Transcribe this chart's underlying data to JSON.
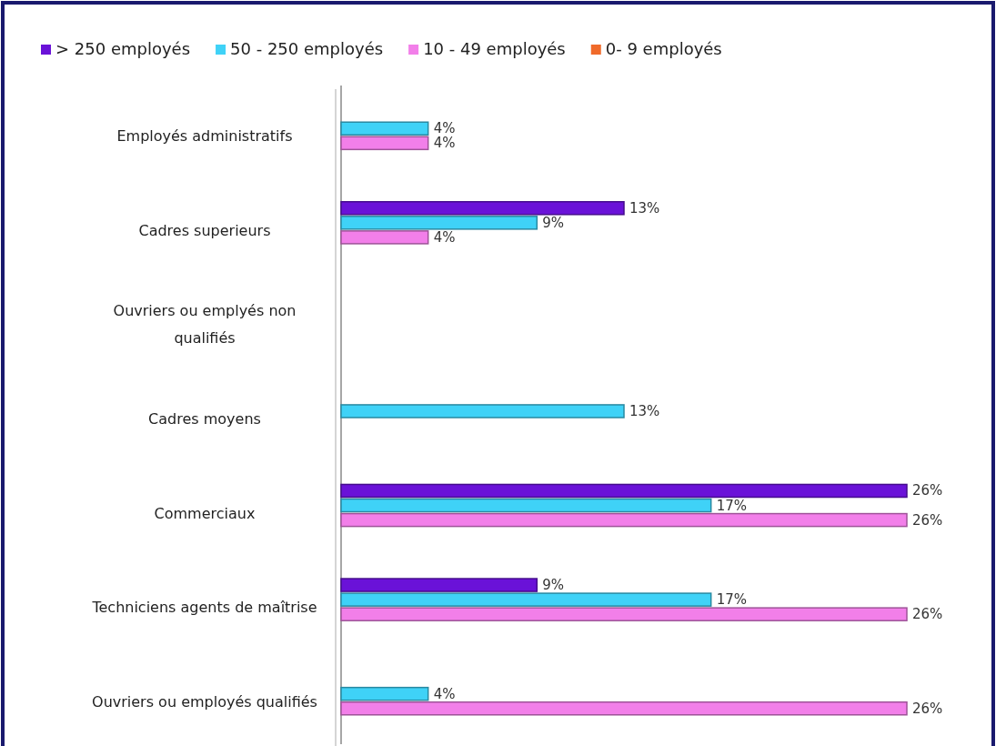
{
  "chart_data": {
    "type": "bar",
    "orientation": "horizontal",
    "legend": "top",
    "categories": [
      "Employés administratifs",
      "Cadres superieurs",
      "Ouvriers ou emplyés non qualifiés",
      "Cadres moyens",
      "Commerciaux",
      "Techniciens agents de maîtrise",
      "Ouvriers ou employés qualifiés"
    ],
    "series": [
      {
        "name": "> 250 employés",
        "color": "#6a12d8",
        "values": [
          0,
          13,
          0,
          0,
          26,
          9,
          0
        ],
        "value_labels": [
          null,
          "13%",
          null,
          null,
          "26%",
          "9%",
          null
        ]
      },
      {
        "name": "50 - 250 employés",
        "color": "#3fd2f7",
        "values": [
          4,
          9,
          0,
          13,
          17,
          17,
          4
        ],
        "value_labels": [
          "4%",
          "9%",
          null,
          "13%",
          "17%",
          "17%",
          "4%"
        ]
      },
      {
        "name": "10 - 49 employés",
        "color": "#f27fe9",
        "values": [
          4,
          4,
          0,
          0,
          26,
          26,
          26
        ],
        "value_labels": [
          "4%",
          "4%",
          null,
          null,
          "26%",
          "26%",
          "26%"
        ]
      },
      {
        "name": "0- 9 employés",
        "color": "#f06a2a",
        "values": [
          0,
          0,
          0,
          0,
          0,
          0,
          0
        ],
        "value_labels": [
          null,
          null,
          null,
          null,
          null,
          null,
          null
        ]
      }
    ]
  }
}
